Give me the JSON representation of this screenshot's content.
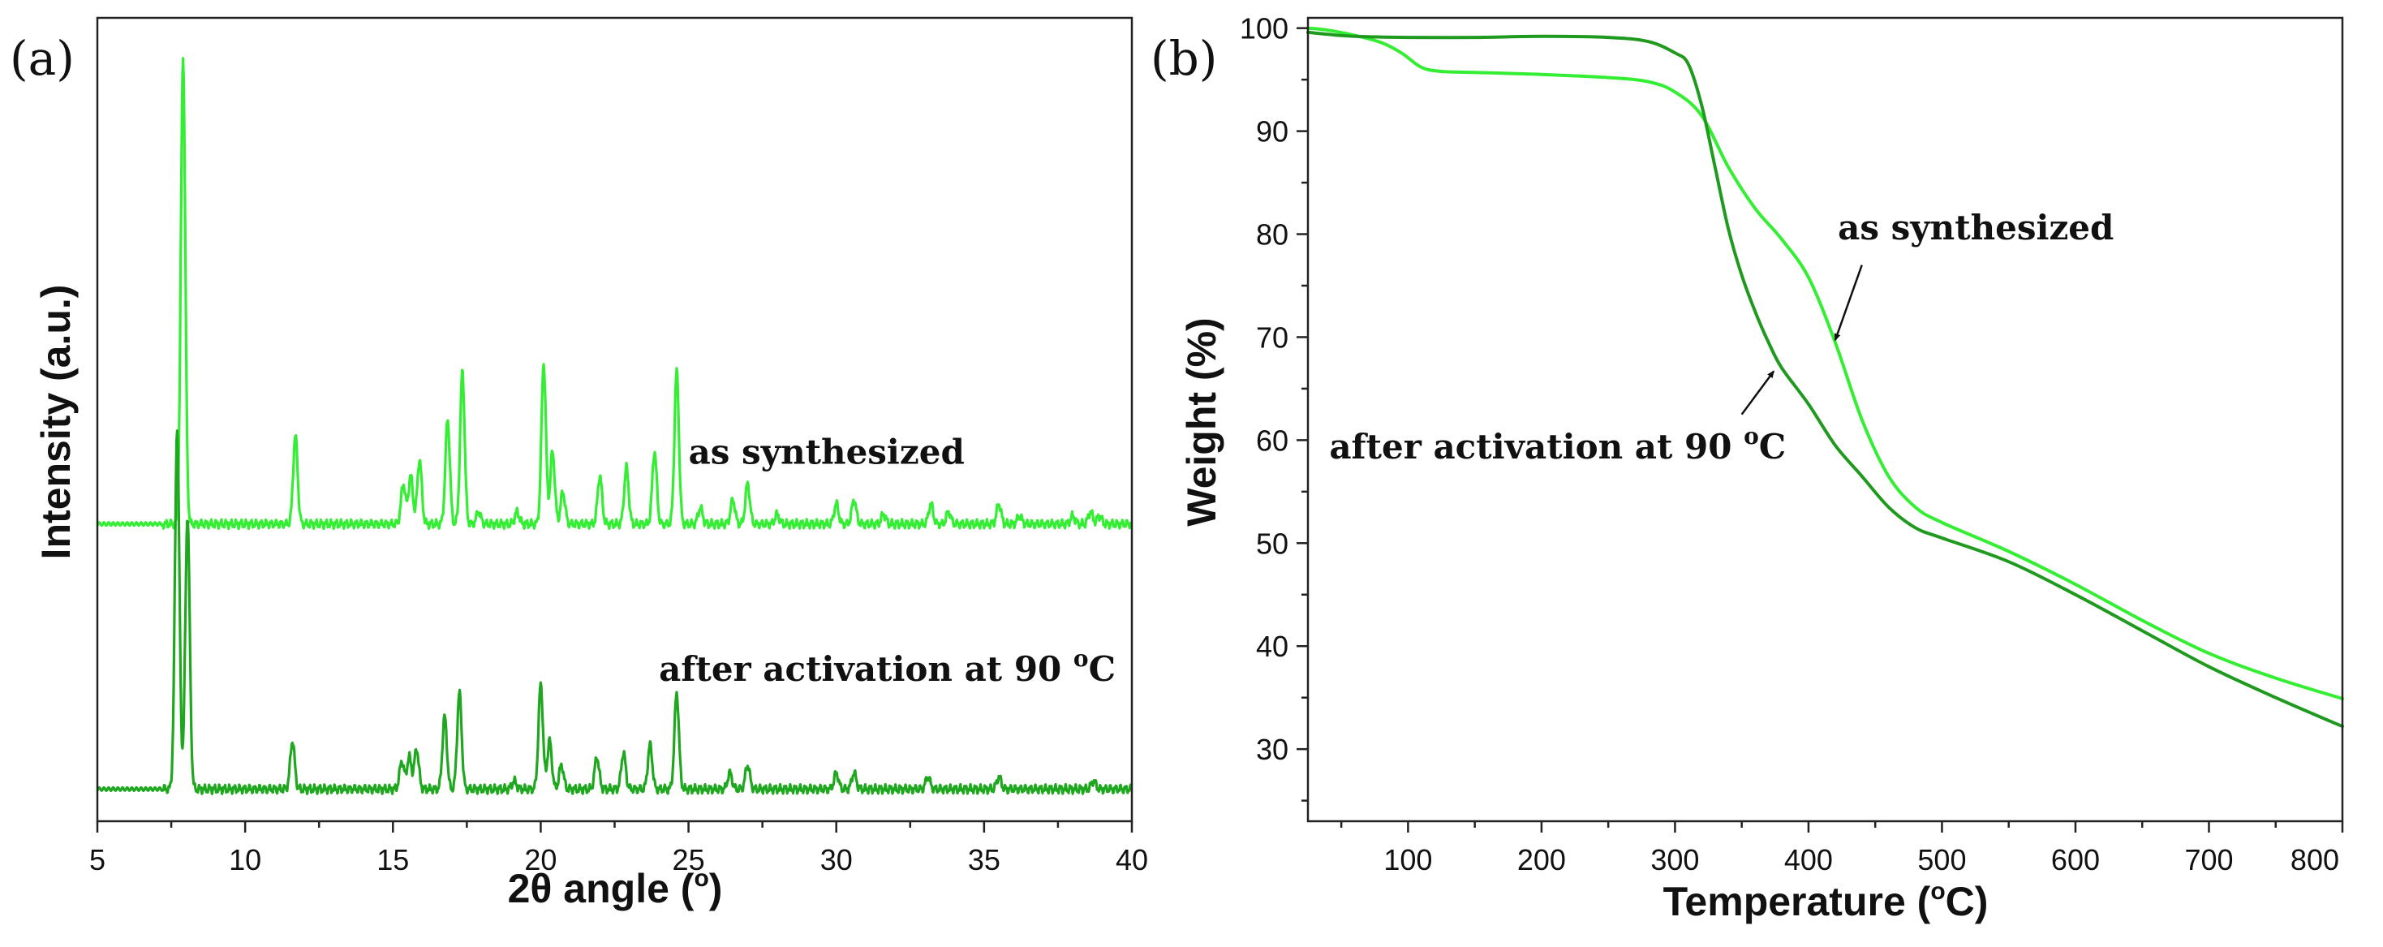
{
  "chart_data": [
    {
      "panel_label": "(a)",
      "type": "line",
      "title": "",
      "xlabel": "2θ angle (°)",
      "xlabel_main": "2θ angle (",
      "xlabel_sup": "o",
      "xlabel_tail": ")",
      "ylabel": "Intensity (a.u.)",
      "xlim": [
        5,
        40
      ],
      "ylim": [
        0,
        100
      ],
      "xticks": [
        5,
        10,
        15,
        20,
        25,
        30,
        35,
        40
      ],
      "yticks_shown": false,
      "grid": false,
      "series": [
        {
          "name": "as synthesized",
          "color": "#33ee33",
          "baseline": 37,
          "peaks": [
            [
              7.9,
              58
            ],
            [
              11.7,
              11
            ],
            [
              15.35,
              5
            ],
            [
              15.6,
              6
            ],
            [
              15.9,
              8
            ],
            [
              16.85,
              13
            ],
            [
              17.35,
              19
            ],
            [
              17.9,
              1.5
            ],
            [
              19.2,
              1.5
            ],
            [
              20.1,
              20
            ],
            [
              20.4,
              9
            ],
            [
              20.75,
              4
            ],
            [
              22.0,
              6
            ],
            [
              22.9,
              7
            ],
            [
              23.85,
              9
            ],
            [
              24.6,
              19
            ],
            [
              25.4,
              2
            ],
            [
              26.5,
              3
            ],
            [
              27.0,
              5
            ],
            [
              28.0,
              1.2
            ],
            [
              30.0,
              2.5
            ],
            [
              30.6,
              3
            ],
            [
              31.6,
              1.2
            ],
            [
              33.2,
              2.5
            ],
            [
              33.8,
              1.5
            ],
            [
              35.5,
              2.5
            ],
            [
              36.2,
              1
            ],
            [
              38.0,
              1
            ],
            [
              38.6,
              1.5
            ],
            [
              38.9,
              1
            ]
          ],
          "label_text": "as synthesized",
          "label_anchor": [
            25.0,
            44.5
          ]
        },
        {
          "name": "after activation at 90 °C",
          "color": "#1fa81f",
          "baseline": 4,
          "peaks": [
            [
              7.7,
              45
            ],
            [
              8.05,
              34
            ],
            [
              11.6,
              6
            ],
            [
              15.3,
              3.5
            ],
            [
              15.55,
              4
            ],
            [
              15.8,
              5
            ],
            [
              16.75,
              9
            ],
            [
              17.25,
              12
            ],
            [
              19.1,
              1
            ],
            [
              20.0,
              13
            ],
            [
              20.3,
              6
            ],
            [
              20.7,
              3
            ],
            [
              21.9,
              4
            ],
            [
              22.8,
              4.5
            ],
            [
              23.7,
              5.5
            ],
            [
              24.6,
              12
            ],
            [
              26.4,
              2
            ],
            [
              27.0,
              3
            ],
            [
              30.0,
              2
            ],
            [
              30.6,
              2
            ],
            [
              33.1,
              1.5
            ],
            [
              35.5,
              1.5
            ],
            [
              38.7,
              1
            ]
          ],
          "label_text": "after activation at 90 ",
          "label_sup": "o",
          "label_unit": "C",
          "label_anchor": [
            24.0,
            17.5
          ]
        }
      ]
    },
    {
      "panel_label": "(b)",
      "type": "line",
      "title": "",
      "xlabel": "Temperature (°C)",
      "xlabel_main": "Temperature (",
      "xlabel_sup": "o",
      "xlabel_tail": "C)",
      "ylabel": "Weight (%)",
      "xlim": [
        25,
        800
      ],
      "ylim": [
        23,
        101
      ],
      "xticks": [
        100,
        200,
        300,
        400,
        500,
        600,
        700,
        800
      ],
      "yticks": [
        30,
        40,
        50,
        60,
        70,
        80,
        90,
        100
      ],
      "grid": false,
      "series": [
        {
          "name": "as synthesized",
          "color": "#33ee33",
          "x": [
            25,
            40,
            60,
            80,
            95,
            110,
            125,
            150,
            200,
            250,
            280,
            300,
            320,
            340,
            360,
            380,
            400,
            420,
            440,
            460,
            480,
            500,
            550,
            600,
            650,
            700,
            750,
            800
          ],
          "y": [
            100,
            99.8,
            99.3,
            98.6,
            97.6,
            96.2,
            95.8,
            95.7,
            95.5,
            95.2,
            94.8,
            93.8,
            91.5,
            86.5,
            82.5,
            79.5,
            75.8,
            69.5,
            62.0,
            56.5,
            53.5,
            52.0,
            49.2,
            46.0,
            42.5,
            39.3,
            36.9,
            34.9
          ],
          "annotation": "as synthesized",
          "arrow_from": [
            440,
            77
          ],
          "arrow_to": [
            420,
            69.7
          ]
        },
        {
          "name": "after activation at 90 °C",
          "color": "#1f9a1f",
          "x": [
            25,
            40,
            60,
            100,
            150,
            200,
            250,
            280,
            300,
            310,
            320,
            330,
            340,
            350,
            360,
            370,
            380,
            400,
            420,
            440,
            460,
            480,
            500,
            550,
            600,
            650,
            700,
            750,
            800
          ],
          "y": [
            99.6,
            99.4,
            99.2,
            99.1,
            99.1,
            99.2,
            99.1,
            98.7,
            97.6,
            96.5,
            92.5,
            86.5,
            80.5,
            76.0,
            72.5,
            69.5,
            67.0,
            63.5,
            59.5,
            56.5,
            53.5,
            51.5,
            50.5,
            48.2,
            45.0,
            41.5,
            38.0,
            35.0,
            32.2
          ],
          "annotation": "after activation at 90 ",
          "annotation_sup": "o",
          "annotation_unit": "C",
          "arrow_from": [
            350,
            62.5
          ],
          "arrow_to": [
            374,
            66.7
          ]
        }
      ]
    }
  ]
}
